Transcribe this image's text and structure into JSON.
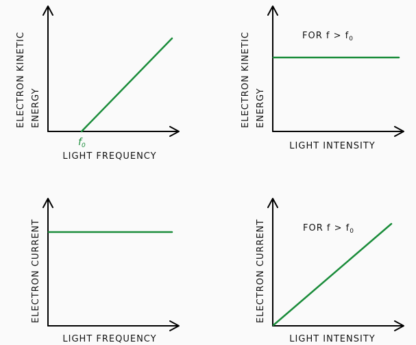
{
  "accent_color": "#1a8c3a",
  "panels": [
    {
      "y_label_line1": "ELECTRON  KINETIC",
      "y_label_line2": "ENERGY",
      "x_label": "LIGHT  FREQUENCY",
      "threshold_label": "f",
      "threshold_subscript": "0",
      "relationship": "linear above threshold"
    },
    {
      "y_label_line1": "ELECTRON  KINETIC",
      "y_label_line2": "ENERGY",
      "x_label": "LIGHT  INTENSITY",
      "condition_prefix": "FOR   f > f",
      "condition_subscript": "0",
      "relationship": "constant"
    },
    {
      "y_label_line1": "ELECTRON  CURRENT",
      "x_label": "LIGHT  FREQUENCY",
      "relationship": "constant"
    },
    {
      "y_label_line1": "ELECTRON  CURRENT",
      "x_label": "LIGHT  INTENSITY",
      "condition_prefix": "FOR   f > f",
      "condition_subscript": "0",
      "relationship": "proportional"
    }
  ]
}
